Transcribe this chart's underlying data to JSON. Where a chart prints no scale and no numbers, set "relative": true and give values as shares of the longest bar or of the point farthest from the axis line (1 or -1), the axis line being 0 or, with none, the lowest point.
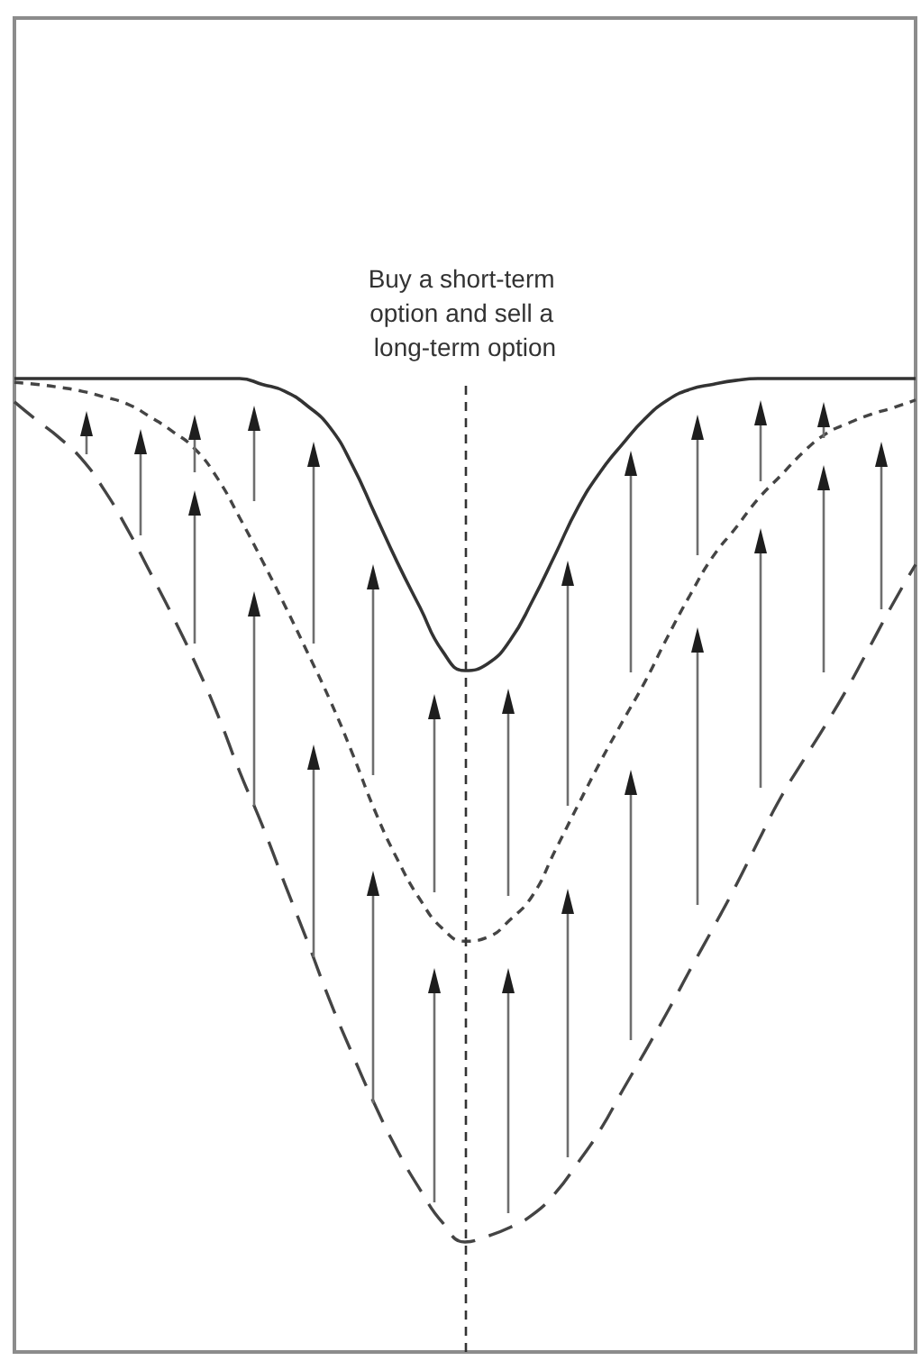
{
  "chart_data": {
    "type": "line",
    "relative": true,
    "marker": "none",
    "categories": [
      null,
      null,
      null,
      null,
      null,
      null,
      null,
      null,
      null,
      null,
      null,
      null,
      null,
      null,
      null,
      null,
      null,
      null,
      null,
      null,
      null,
      null,
      null,
      null,
      null,
      null,
      null,
      null,
      null,
      null,
      null,
      null,
      null,
      null,
      null,
      null,
      null,
      null,
      null,
      null,
      null
    ],
    "series": [
      {
        "color": "#333333",
        "line_style": "solid",
        "values": [
          1,
          1,
          1,
          1,
          1,
          1,
          1,
          1,
          1,
          1,
          1,
          0.994,
          0.987,
          0.972,
          0.95,
          0.911,
          0.861,
          0.811,
          0.765,
          0.72,
          0.7,
          0.707,
          0.731,
          0.772,
          0.819,
          0.867,
          0.904,
          0.933,
          0.959,
          0.978,
          0.989,
          0.994,
          0.998,
          1,
          1,
          1,
          1,
          1,
          1,
          1,
          1
        ]
      },
      {
        "color": "#444444",
        "line_style": "dotted",
        "values": [
          0.996,
          0.994,
          0.991,
          0.987,
          0.981,
          0.974,
          0.961,
          0.946,
          0.928,
          0.898,
          0.857,
          0.813,
          0.767,
          0.719,
          0.67,
          0.615,
          0.556,
          0.506,
          0.465,
          0.435,
          0.422,
          0.426,
          0.444,
          0.469,
          0.515,
          0.561,
          0.606,
          0.648,
          0.689,
          0.735,
          0.778,
          0.817,
          0.846,
          0.876,
          0.9,
          0.924,
          0.943,
          0.954,
          0.963,
          0.97,
          0.978
        ]
      },
      {
        "color": "#444444",
        "line_style": "dashed",
        "values": [
          0.976,
          0.957,
          0.939,
          0.917,
          0.885,
          0.846,
          0.802,
          0.757,
          0.709,
          0.656,
          0.596,
          0.541,
          0.481,
          0.422,
          0.361,
          0.306,
          0.254,
          0.207,
          0.167,
          0.133,
          0.113,
          0.119,
          0.128,
          0.141,
          0.163,
          0.194,
          0.228,
          0.269,
          0.309,
          0.35,
          0.393,
          0.435,
          0.478,
          0.524,
          0.569,
          0.607,
          0.644,
          0.683,
          0.726,
          0.769,
          0.809
        ]
      }
    ],
    "annotations": [
      "Buy a short-term option and sell a long-term option"
    ]
  }
}
